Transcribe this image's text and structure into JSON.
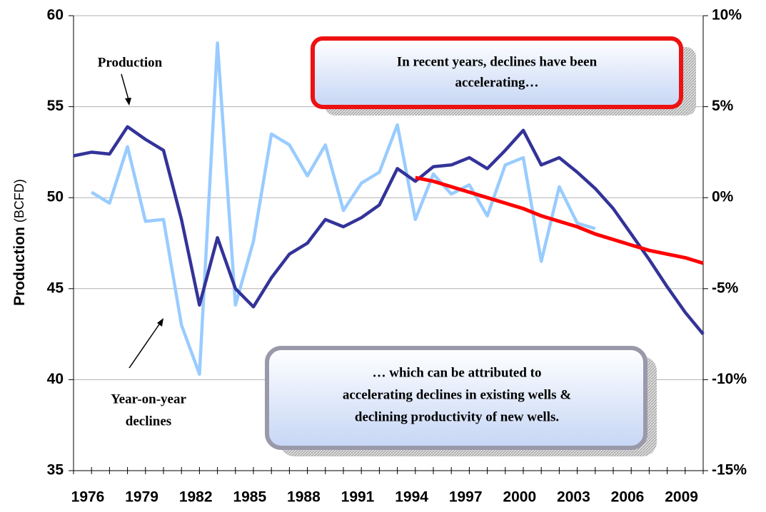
{
  "chart_data": {
    "type": "line",
    "y_label": "Production",
    "y_label_unit": "(BCFD)",
    "x": [
      1976,
      1977,
      1978,
      1979,
      1980,
      1981,
      1982,
      1983,
      1984,
      1985,
      1986,
      1987,
      1988,
      1989,
      1990,
      1991,
      1992,
      1993,
      1994,
      1995,
      1996,
      1997,
      1998,
      1999,
      2000,
      2001,
      2002,
      2003,
      2004,
      2005,
      2006,
      2007,
      2008,
      2009,
      2010,
      2011
    ],
    "xlim": [
      1976,
      2011
    ],
    "xticks": [
      1976,
      1979,
      1982,
      1985,
      1988,
      1991,
      1994,
      1997,
      2000,
      2003,
      2006,
      2009
    ],
    "ylim": [
      35,
      60
    ],
    "yticks": [
      35,
      40,
      45,
      50,
      55,
      60
    ],
    "y2lim": [
      -15,
      10
    ],
    "y2ticks": [
      {
        "value": -15,
        "label": "-15%"
      },
      {
        "value": -10,
        "label": "-10%"
      },
      {
        "value": -5,
        "label": "-5%"
      },
      {
        "value": 0,
        "label": "0%"
      },
      {
        "value": 5,
        "label": "5%"
      },
      {
        "value": 10,
        "label": "10%"
      }
    ],
    "grid": true,
    "series": [
      {
        "name": "Production",
        "color": "#333399",
        "values": [
          52.3,
          52.5,
          52.4,
          53.9,
          53.2,
          52.6,
          48.8,
          44.1,
          47.8,
          45.0,
          44.0,
          45.6,
          46.9,
          47.5,
          48.8,
          48.4,
          48.9,
          49.6,
          51.6,
          50.9,
          51.7,
          51.8,
          52.2,
          51.6,
          52.6,
          53.7,
          51.8,
          52.2,
          51.4,
          50.5,
          49.4,
          48.0,
          46.6,
          45.1,
          43.7,
          42.5
        ]
      },
      {
        "name": [
          "Year-on-year",
          "declines"
        ],
        "color": "#99ccff",
        "axis": "y2",
        "values": [
          null,
          0.3,
          -0.3,
          2.8,
          -1.3,
          -1.2,
          -7.0,
          -9.7,
          8.5,
          -5.9,
          -2.4,
          3.5,
          2.9,
          1.2,
          2.9,
          -0.7,
          0.8,
          1.4,
          4.0,
          -1.2,
          1.3,
          0.2,
          0.7,
          -1.0,
          1.8,
          2.2,
          -3.5,
          0.6,
          -1.4,
          -1.7,
          null,
          null,
          null,
          null,
          null,
          null
        ]
      },
      {
        "color": "#ff0000",
        "values": [
          null,
          null,
          null,
          null,
          null,
          null,
          null,
          null,
          null,
          null,
          null,
          null,
          null,
          null,
          null,
          null,
          null,
          null,
          null,
          51.1,
          50.9,
          50.6,
          50.3,
          50.0,
          49.7,
          49.4,
          49.0,
          48.7,
          48.4,
          48.0,
          47.7,
          47.4,
          47.1,
          46.9,
          46.7,
          46.4
        ]
      }
    ],
    "annotations": [
      [
        "In recent years, declines have been",
        "accelerating…"
      ],
      [
        "… which can be attributed to",
        "accelerating declines in existing wells &",
        "declining productivity of new wells."
      ]
    ]
  }
}
